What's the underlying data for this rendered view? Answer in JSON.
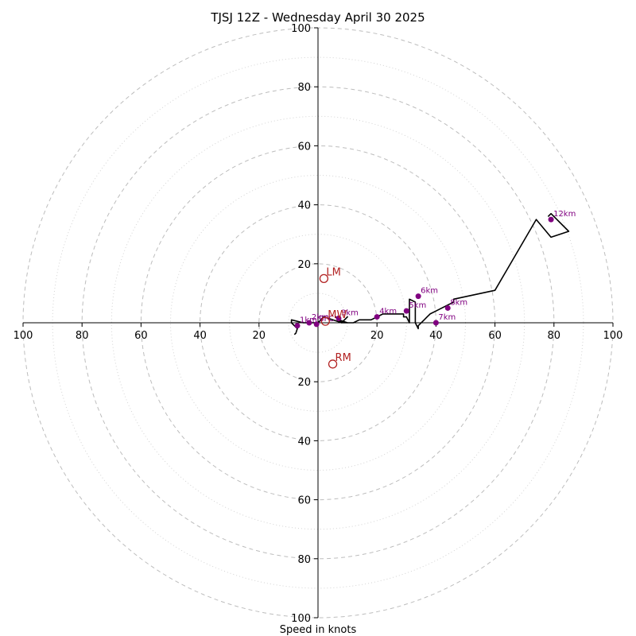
{
  "chart_data": {
    "type": "hodograph",
    "title": "TJSJ 12Z - Wednesday April 30 2025",
    "xlabel": "Speed in knots",
    "range": [
      -100,
      100
    ],
    "major_rings": [
      20,
      40,
      60,
      80,
      100
    ],
    "minor_rings": [
      10,
      30,
      50,
      70,
      90
    ],
    "x_tick_labels": [
      "100",
      "80",
      "60",
      "40",
      "20",
      "20",
      "40",
      "60",
      "80",
      "100"
    ],
    "x_tick_values": [
      -100,
      -80,
      -60,
      -40,
      -20,
      20,
      40,
      60,
      80,
      100
    ],
    "y_tick_labels": [
      "100",
      "80",
      "60",
      "40",
      "20",
      "20",
      "40",
      "60",
      "80",
      "100"
    ],
    "y_tick_values": [
      100,
      80,
      60,
      40,
      20,
      -20,
      -40,
      -60,
      -80,
      -100
    ],
    "grid": true,
    "colors": {
      "trace": "#000000",
      "heights": "#800080",
      "motion": "#b22222",
      "rings": "#bdbdbd"
    },
    "trace": {
      "u": [
        -8,
        -7.5,
        -7,
        -8,
        -9,
        -9,
        -5,
        -3,
        0,
        2,
        5,
        8,
        10,
        8,
        6,
        7,
        10,
        8,
        12,
        14,
        16,
        18,
        20,
        22,
        24,
        26,
        28,
        29,
        29,
        30,
        31,
        31,
        33,
        33,
        34,
        34,
        36,
        37,
        38,
        40,
        42,
        44,
        46,
        46,
        60,
        74,
        79,
        85,
        79,
        78
      ],
      "v": [
        -4,
        -3.5,
        -2,
        -1,
        0,
        1,
        0,
        0,
        0,
        2,
        1,
        0,
        2,
        0,
        2,
        1,
        0,
        0,
        0,
        1,
        1,
        1,
        2,
        3,
        3,
        3,
        3,
        3,
        2,
        2,
        0,
        8,
        7,
        0,
        -2,
        -1,
        1,
        2,
        3,
        4,
        5,
        6,
        7,
        8,
        11,
        35,
        29,
        31,
        37,
        36
      ]
    },
    "height_markers": [
      {
        "label": "1km",
        "u": -7,
        "v": -1
      },
      {
        "label": "2km",
        "u": -3,
        "v": 0
      },
      {
        "label": "3km",
        "u": 7,
        "v": 1.5
      },
      {
        "label": "4km",
        "u": 20,
        "v": 2
      },
      {
        "label": "5km",
        "u": 30,
        "v": 4
      },
      {
        "label": "6km",
        "u": 34,
        "v": 9
      },
      {
        "label": "7km",
        "u": 40,
        "v": 0
      },
      {
        "label": "8km",
        "u": 44,
        "v": 5
      },
      {
        "label": "12km",
        "u": 79,
        "v": 35
      },
      {
        "label": "SFC",
        "u": -0.5,
        "v": -0.5
      }
    ],
    "storm_motion": [
      {
        "label": "LM",
        "u": 2,
        "v": 15
      },
      {
        "label": "RM",
        "u": 5,
        "v": -14
      },
      {
        "label": "MW",
        "u": 2.5,
        "v": 0.5
      }
    ]
  }
}
